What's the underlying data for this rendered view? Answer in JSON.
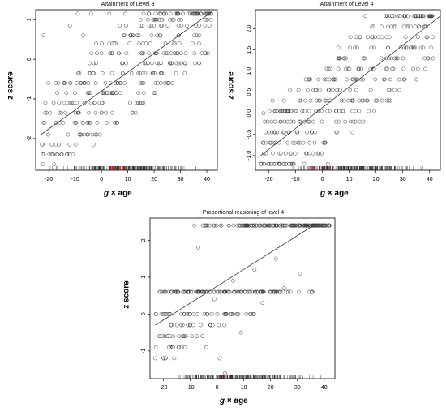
{
  "chart_data": [
    {
      "type": "scatter",
      "title": "Attainment of Level 3",
      "xlabel_var": "g",
      "xlabel_rest": " × age",
      "ylabel": "z score",
      "xlim": [
        -25,
        44
      ],
      "ylim": [
        -2.8,
        1.25
      ],
      "xticks": [
        -20,
        -10,
        0,
        10,
        20,
        30,
        40
      ],
      "yticks": [
        -2,
        -1,
        0,
        1
      ],
      "ytick_labels": [
        "-2",
        "-1",
        "0",
        "1"
      ],
      "point_levels": [
        1.15,
        1.0,
        0.85,
        0.6,
        0.4,
        0.15,
        -0.1,
        -0.35,
        -0.6,
        -0.85,
        -1.1,
        -1.35,
        -1.6,
        -1.9,
        -2.15,
        -2.4,
        -2.65
      ],
      "fit_line": {
        "x": [
          -23,
          42
        ],
        "y": [
          -1.9,
          1.2
        ]
      },
      "points": [
        [
          -22,
          0.6
        ],
        [
          -13,
          -1.1
        ],
        [
          -12,
          0.85
        ],
        [
          -9,
          1.15
        ],
        [
          -8,
          -1.9
        ],
        [
          -7,
          0.6
        ],
        [
          -5,
          -0.6
        ],
        [
          -4,
          1.15
        ],
        [
          -2,
          0.4
        ],
        [
          0,
          -1.35
        ],
        [
          3,
          1.15
        ],
        [
          4,
          -0.35
        ],
        [
          6,
          -1.6
        ],
        [
          7,
          0.85
        ],
        [
          9,
          1.15
        ],
        [
          11,
          0.6
        ],
        [
          14,
          -1.1
        ],
        [
          16,
          1.15
        ],
        [
          19,
          0.85
        ],
        [
          22,
          1.15
        ],
        [
          26,
          1.0
        ],
        [
          29,
          1.15
        ],
        [
          33,
          1.15
        ],
        [
          36,
          1.15
        ],
        [
          41,
          0.85
        ]
      ],
      "rug_highlight": [
        3,
        9
      ]
    },
    {
      "type": "scatter",
      "title": "Attainment of Level 4",
      "xlabel_var": "g",
      "xlabel_rest": " × age",
      "ylabel": "z score",
      "xlim": [
        -25,
        44
      ],
      "ylim": [
        -1.35,
        2.45
      ],
      "xticks": [
        -20,
        -10,
        0,
        10,
        20,
        30,
        40
      ],
      "yticks": [
        -1.0,
        -0.5,
        0.0,
        0.5,
        1.0,
        1.5,
        2.0
      ],
      "ytick_labels": [
        "-1.0",
        "-0.5",
        "0.0",
        "0.5",
        "1.0",
        "1.5",
        "2.0"
      ],
      "point_levels": [
        2.3,
        2.05,
        1.8,
        1.55,
        1.3,
        1.05,
        0.8,
        0.55,
        0.3,
        0.05,
        -0.2,
        -0.45,
        -0.7,
        -0.95,
        -1.2
      ],
      "fit_line": {
        "x": [
          -23,
          44
        ],
        "y": [
          -1.0,
          2.3
        ]
      },
      "points": [
        [
          -22,
          0.0
        ],
        [
          -16,
          -1.2
        ],
        [
          -11,
          -0.7
        ],
        [
          -8,
          0.3
        ],
        [
          -4,
          -0.45
        ],
        [
          -1,
          0.55
        ],
        [
          2,
          -1.2
        ],
        [
          4,
          0.8
        ],
        [
          6,
          -0.2
        ],
        [
          8,
          1.3
        ],
        [
          11,
          0.3
        ],
        [
          13,
          1.55
        ],
        [
          16,
          2.3
        ],
        [
          19,
          1.05
        ],
        [
          22,
          2.05
        ],
        [
          25,
          0.55
        ],
        [
          28,
          2.3
        ],
        [
          31,
          1.8
        ],
        [
          34,
          2.3
        ],
        [
          36,
          2.05
        ],
        [
          40,
          2.3
        ]
      ],
      "rug_highlight": [
        -5,
        5
      ]
    },
    {
      "type": "scatter",
      "title": "Proportional reasoning of level 4",
      "xlabel_var": "g",
      "xlabel_rest": " × age",
      "ylabel": "z score",
      "xlim": [
        -25,
        44
      ],
      "ylim": [
        -1.75,
        2.6
      ],
      "xticks": [
        -20,
        -10,
        0,
        10,
        20,
        30,
        40
      ],
      "yticks": [
        -1,
        0,
        1,
        2
      ],
      "ytick_labels": [
        "-1",
        "0",
        "1",
        "2"
      ],
      "point_levels": [
        2.4,
        0.6,
        0.0,
        -0.3,
        -0.6,
        -0.9,
        -1.2
      ],
      "fit_line": {
        "x": [
          -23,
          36
        ],
        "y": [
          -0.3,
          2.4
        ]
      },
      "points": [
        [
          -23,
          -1.2
        ],
        [
          -20,
          -1.2
        ],
        [
          -17,
          0.6
        ],
        [
          -13,
          -0.6
        ],
        [
          -10,
          0.0
        ],
        [
          -7,
          1.8
        ],
        [
          -4,
          -0.9
        ],
        [
          -1,
          0.4
        ],
        [
          1,
          -1.2
        ],
        [
          3,
          -1.6
        ],
        [
          6,
          0.9
        ],
        [
          9,
          -0.5
        ],
        [
          11,
          2.4
        ],
        [
          14,
          1.2
        ],
        [
          17,
          0.3
        ],
        [
          19,
          2.4
        ],
        [
          22,
          1.5
        ],
        [
          25,
          0.7
        ],
        [
          28,
          2.4
        ],
        [
          31,
          1.1
        ],
        [
          34,
          2.4
        ],
        [
          38,
          2.4
        ],
        [
          42,
          2.4
        ]
      ],
      "rug_highlight": [
        2,
        4
      ]
    }
  ]
}
